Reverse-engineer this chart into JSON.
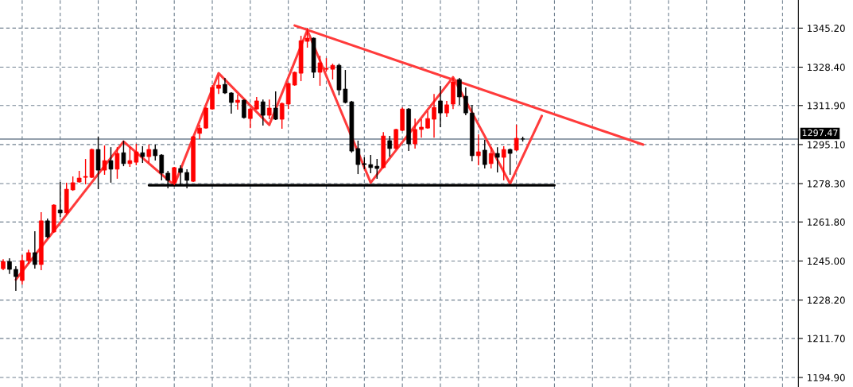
{
  "chart_data": {
    "type": "candlestick",
    "categories": [
      null,
      null,
      null,
      null,
      null,
      null,
      null,
      null,
      null,
      null,
      null,
      null,
      null,
      null,
      null,
      null,
      null,
      null,
      null,
      null,
      null,
      null,
      null,
      null,
      null,
      null,
      null,
      null,
      null,
      null,
      null,
      null,
      null,
      null,
      null,
      null,
      null,
      null,
      null,
      null,
      null,
      null,
      null,
      null,
      null,
      null,
      null,
      null,
      null,
      null,
      null,
      null,
      null,
      null,
      null,
      null,
      null,
      null,
      null,
      null,
      null,
      null,
      null,
      null,
      null,
      null,
      null,
      null,
      null,
      null,
      null,
      null,
      null,
      null,
      null,
      null,
      null,
      null,
      null,
      null,
      null,
      null,
      null,
      null,
      null,
      null,
      null,
      null,
      null,
      null,
      null,
      null,
      null,
      null,
      null,
      null,
      null,
      null,
      null,
      null,
      null,
      null,
      null,
      null,
      null,
      null,
      null,
      null,
      null,
      null,
      null,
      null,
      null,
      null,
      null,
      null,
      null,
      null,
      null,
      null,
      null,
      null,
      null,
      null,
      null,
      null
    ],
    "ohlc": [
      [
        1241.7,
        1245.8,
        1241.1,
        1244.8
      ],
      [
        1244.8,
        1246.2,
        1239.4,
        1241.4
      ],
      [
        1241.4,
        1242.8,
        1232.2,
        1238.3
      ],
      [
        1236.6,
        1247.6,
        1234.9,
        1245.2
      ],
      [
        1245.2,
        1249.9,
        1243.8,
        1248.6
      ],
      [
        1248.6,
        1257.8,
        1241.7,
        1243.5
      ],
      [
        1243.5,
        1266.0,
        1241.1,
        1262.3
      ],
      [
        1262.3,
        1263.3,
        1254.7,
        1255.4
      ],
      [
        1257.5,
        1269.4,
        1257.1,
        1269.1
      ],
      [
        1267.0,
        1279.0,
        1264.0,
        1265.7
      ],
      [
        1265.7,
        1278.7,
        1265.0,
        1275.9
      ],
      [
        1275.6,
        1281.4,
        1275.2,
        1278.7
      ],
      [
        1279.0,
        1283.8,
        1278.7,
        1280.7
      ],
      [
        1281.0,
        1288.9,
        1278.0,
        1281.4
      ],
      [
        1281.0,
        1293.4,
        1280.7,
        1293.0
      ],
      [
        1293.0,
        1298.5,
        1275.9,
        1284.1
      ],
      [
        1284.1,
        1294.7,
        1282.1,
        1288.2
      ],
      [
        1288.2,
        1294.0,
        1278.7,
        1284.5
      ],
      [
        1284.5,
        1294.0,
        1280.4,
        1291.3
      ],
      [
        1291.6,
        1296.8,
        1285.8,
        1286.9
      ],
      [
        1286.9,
        1294.0,
        1285.5,
        1288.2
      ],
      [
        1287.5,
        1295.4,
        1286.2,
        1292.0
      ],
      [
        1291.6,
        1294.4,
        1287.2,
        1289.9
      ],
      [
        1289.9,
        1295.1,
        1287.2,
        1293.0
      ],
      [
        1293.0,
        1295.1,
        1288.2,
        1290.3
      ],
      [
        1290.6,
        1291.0,
        1279.7,
        1282.8
      ],
      [
        1282.8,
        1283.8,
        1276.3,
        1279.7
      ],
      [
        1278.7,
        1285.5,
        1277.6,
        1285.2
      ],
      [
        1284.8,
        1286.2,
        1278.0,
        1283.1
      ],
      [
        1283.1,
        1284.5,
        1276.3,
        1279.7
      ],
      [
        1279.3,
        1298.8,
        1279.0,
        1298.5
      ],
      [
        1299.9,
        1303.6,
        1297.5,
        1302.2
      ],
      [
        1302.2,
        1311.1,
        1301.9,
        1310.8
      ],
      [
        1310.4,
        1320.7,
        1310.1,
        1319.7
      ],
      [
        1319.3,
        1324.8,
        1316.9,
        1320.7
      ],
      [
        1321.0,
        1323.8,
        1316.9,
        1317.3
      ],
      [
        1317.3,
        1317.6,
        1308.4,
        1313.2
      ],
      [
        1313.2,
        1316.6,
        1310.1,
        1314.2
      ],
      [
        1314.2,
        1314.5,
        1306.3,
        1306.7
      ],
      [
        1306.3,
        1310.8,
        1302.2,
        1310.4
      ],
      [
        1310.4,
        1315.6,
        1310.1,
        1313.9
      ],
      [
        1313.5,
        1314.5,
        1303.3,
        1307.7
      ],
      [
        1307.7,
        1314.5,
        1306.0,
        1310.8
      ],
      [
        1310.8,
        1318.0,
        1305.7,
        1306.0
      ],
      [
        1306.0,
        1313.2,
        1301.9,
        1312.8
      ],
      [
        1312.5,
        1321.7,
        1310.4,
        1321.4
      ],
      [
        1320.7,
        1326.5,
        1320.4,
        1326.2
      ],
      [
        1325.8,
        1341.9,
        1322.4,
        1339.8
      ],
      [
        1339.5,
        1345.3,
        1336.8,
        1340.9
      ],
      [
        1340.9,
        1341.2,
        1323.8,
        1326.2
      ],
      [
        1326.2,
        1333.3,
        1320.4,
        1330.3
      ],
      [
        1327.5,
        1332.3,
        1326.5,
        1327.9
      ],
      [
        1327.5,
        1329.9,
        1323.1,
        1329.2
      ],
      [
        1329.2,
        1329.9,
        1316.3,
        1318.6
      ],
      [
        1319.0,
        1327.2,
        1312.8,
        1313.2
      ],
      [
        1313.5,
        1313.9,
        1291.6,
        1292.3
      ],
      [
        1293.4,
        1296.8,
        1282.4,
        1286.5
      ],
      [
        1286.9,
        1289.6,
        1284.5,
        1286.5
      ],
      [
        1286.5,
        1290.6,
        1282.8,
        1285.2
      ],
      [
        1285.8,
        1288.9,
        1280.4,
        1284.8
      ],
      [
        1285.2,
        1300.5,
        1284.8,
        1298.8
      ],
      [
        1296.8,
        1298.8,
        1289.9,
        1293.4
      ],
      [
        1293.4,
        1301.9,
        1293.0,
        1301.6
      ],
      [
        1301.2,
        1311.1,
        1300.9,
        1310.4
      ],
      [
        1310.4,
        1310.8,
        1292.3,
        1295.4
      ],
      [
        1295.4,
        1306.3,
        1293.4,
        1301.6
      ],
      [
        1301.6,
        1306.0,
        1298.1,
        1302.6
      ],
      [
        1302.2,
        1309.4,
        1301.9,
        1306.3
      ],
      [
        1306.0,
        1316.9,
        1298.1,
        1311.1
      ],
      [
        1313.9,
        1320.4,
        1302.6,
        1308.7
      ],
      [
        1308.7,
        1313.9,
        1307.0,
        1312.2
      ],
      [
        1312.5,
        1323.8,
        1310.4,
        1322.1
      ],
      [
        1323.1,
        1323.8,
        1312.2,
        1315.6
      ],
      [
        1315.9,
        1319.7,
        1307.7,
        1308.7
      ],
      [
        1308.7,
        1312.2,
        1287.9,
        1290.3
      ],
      [
        1290.3,
        1299.5,
        1286.2,
        1292.0
      ],
      [
        1292.7,
        1297.1,
        1284.8,
        1286.5
      ],
      [
        1286.9,
        1294.0,
        1284.8,
        1291.3
      ],
      [
        1291.3,
        1294.0,
        1283.1,
        1289.6
      ],
      [
        1289.6,
        1294.4,
        1279.7,
        1293.0
      ],
      [
        1293.0,
        1293.4,
        1282.1,
        1291.3
      ],
      [
        1292.7,
        1303.6,
        1292.3,
        1297.8
      ],
      [
        1297.5,
        1298.5,
        1296.4,
        1297.5
      ],
      null,
      null,
      null,
      null,
      null,
      null,
      null,
      null,
      null,
      null,
      null,
      null,
      null,
      null,
      null,
      null,
      null,
      null,
      null,
      null,
      null,
      null,
      null,
      null,
      null,
      null,
      null,
      null,
      null,
      null,
      null,
      null,
      null,
      null,
      null,
      null,
      null,
      null,
      null,
      null,
      null,
      null,
      null
    ],
    "colors": [
      "#ff0000",
      "#000000",
      "#000000",
      "#ff0000",
      "#ff0000",
      "#000000",
      "#ff0000",
      "#000000",
      "#ff0000",
      "#000000",
      "#ff0000",
      "#ff0000",
      "#ff0000",
      "#ff0000",
      "#ff0000",
      "#000000",
      "#ff0000",
      "#000000",
      "#ff0000",
      "#000000",
      "#ff0000",
      "#ff0000",
      "#000000",
      "#ff0000",
      "#000000",
      "#000000",
      "#000000",
      "#ff0000",
      "#000000",
      "#000000",
      "#ff0000",
      "#ff0000",
      "#ff0000",
      "#ff0000",
      "#ff0000",
      "#000000",
      "#000000",
      "#ff0000",
      "#000000",
      "#ff0000",
      "#ff0000",
      "#000000",
      "#ff0000",
      "#000000",
      "#ff0000",
      "#ff0000",
      "#ff0000",
      "#ff0000",
      "#ff0000",
      "#000000",
      "#ff0000",
      "#ff0000",
      "#ff0000",
      "#000000",
      "#000000",
      "#000000",
      "#000000",
      "#000000",
      "#000000",
      "#000000",
      "#ff0000",
      "#000000",
      "#ff0000",
      "#ff0000",
      "#000000",
      "#ff0000",
      "#ff0000",
      "#ff0000",
      "#ff0000",
      "#000000",
      "#ff0000",
      "#ff0000",
      "#000000",
      "#000000",
      "#000000",
      "#ff0000",
      "#000000",
      "#ff0000",
      "#000000",
      "#ff0000",
      "#000000",
      "#ff0000",
      "#000000",
      null,
      null,
      null,
      null,
      null,
      null,
      null,
      null,
      null,
      null,
      null,
      null,
      null,
      null,
      null,
      null,
      null,
      null,
      null,
      null,
      null,
      null,
      null,
      null,
      null,
      null,
      null,
      null,
      null,
      null,
      null,
      null,
      null,
      null,
      null,
      null,
      null,
      null,
      null,
      null,
      null,
      null,
      null
    ],
    "series": [
      {
        "type": "line",
        "color": "#ff3b3b",
        "values": [
          null,
          null,
          1237.0,
          null,
          null,
          null,
          null,
          null,
          null,
          null,
          null,
          null,
          null,
          null,
          null,
          null,
          null,
          null,
          null,
          1296.4,
          null,
          null,
          null,
          null,
          null,
          null,
          null,
          1277.6,
          null,
          null,
          null,
          null,
          null,
          null,
          1325.8,
          null,
          null,
          null,
          null,
          null,
          null,
          null,
          1303.6,
          null,
          null,
          null,
          null,
          null,
          1344.3,
          null,
          null,
          null,
          null,
          null,
          null,
          null,
          null,
          null,
          1278.7,
          null,
          null,
          null,
          null,
          null,
          null,
          null,
          null,
          null,
          null,
          null,
          null,
          1324.1,
          null,
          null,
          null,
          null,
          null,
          null,
          null,
          null,
          1278.3,
          null,
          null,
          null,
          null,
          1307.4,
          null,
          null,
          null,
          null,
          null,
          null,
          null,
          null,
          null,
          null,
          null,
          null,
          null,
          null,
          null,
          null,
          null,
          null,
          null,
          null,
          null,
          null,
          null,
          null,
          null,
          null,
          null,
          null,
          null,
          null,
          null,
          null,
          null,
          null,
          null,
          null,
          null,
          null,
          null,
          null
        ]
      },
      {
        "type": "line",
        "color": "#ff3b3b",
        "values": [
          null,
          null,
          null,
          null,
          null,
          null,
          null,
          null,
          null,
          null,
          null,
          null,
          null,
          null,
          null,
          null,
          null,
          null,
          null,
          null,
          null,
          null,
          null,
          null,
          null,
          null,
          null,
          null,
          null,
          null,
          null,
          null,
          null,
          null,
          null,
          null,
          null,
          null,
          null,
          null,
          null,
          null,
          null,
          null,
          null,
          null,
          1346.3,
          null,
          null,
          null,
          null,
          null,
          null,
          null,
          null,
          null,
          null,
          null,
          null,
          null,
          null,
          null,
          null,
          null,
          null,
          null,
          null,
          null,
          null,
          null,
          null,
          null,
          null,
          null,
          null,
          null,
          null,
          null,
          null,
          null,
          null,
          null,
          null,
          null,
          null,
          null,
          null,
          null,
          null,
          null,
          null,
          null,
          null,
          null,
          null,
          null,
          null,
          null,
          null,
          null,
          null,
          1295.1,
          null,
          null,
          null,
          null,
          null,
          null,
          null,
          null,
          null,
          null,
          null,
          null,
          null,
          null,
          null,
          null,
          null,
          null,
          null,
          null,
          null,
          null,
          null,
          null
        ]
      },
      {
        "type": "line",
        "color": "#000000",
        "values": [
          null,
          null,
          null,
          null,
          null,
          null,
          null,
          null,
          null,
          null,
          null,
          null,
          null,
          null,
          null,
          null,
          null,
          null,
          null,
          null,
          null,
          null,
          null,
          1277.6,
          null,
          null,
          null,
          null,
          null,
          null,
          null,
          null,
          null,
          null,
          null,
          null,
          null,
          null,
          null,
          null,
          null,
          null,
          null,
          null,
          null,
          null,
          null,
          null,
          null,
          null,
          null,
          null,
          null,
          null,
          null,
          null,
          null,
          null,
          null,
          null,
          null,
          null,
          null,
          null,
          null,
          null,
          null,
          null,
          null,
          null,
          null,
          null,
          null,
          null,
          null,
          null,
          null,
          null,
          null,
          null,
          null,
          null,
          null,
          null,
          null,
          null,
          null,
          1277.6,
          null,
          null,
          null,
          null,
          null,
          null,
          null,
          null,
          null,
          null,
          null,
          null,
          null,
          null,
          null,
          null,
          null,
          null,
          null,
          null,
          null,
          null,
          null,
          null,
          null,
          null,
          null,
          null,
          null,
          null,
          null,
          null,
          null,
          null,
          null,
          null,
          null,
          null
        ]
      }
    ],
    "ylim": [
      1190.8,
      1357.3
    ],
    "yticks": [
      {
        "value": 1194.9,
        "label": "1194.90"
      },
      {
        "value": 1211.7,
        "label": "1211.70"
      },
      {
        "value": 1228.2,
        "label": "1228.20"
      },
      {
        "value": 1245.0,
        "label": "1245.00"
      },
      {
        "value": 1261.8,
        "label": "1261.80"
      },
      {
        "value": 1278.3,
        "label": "1278.30"
      },
      {
        "value": 1295.1,
        "label": "1295.10"
      },
      {
        "value": 1311.9,
        "label": "1311.90"
      },
      {
        "value": 1328.4,
        "label": "1328.40"
      },
      {
        "value": 1345.2,
        "label": "1345.20"
      }
    ],
    "ref_lines": [
      {
        "axis": "y",
        "value": 1297.47,
        "label": "1297.47",
        "color": "#708090",
        "line_style": "solid"
      }
    ],
    "grid": true,
    "tick_labels": "y"
  }
}
